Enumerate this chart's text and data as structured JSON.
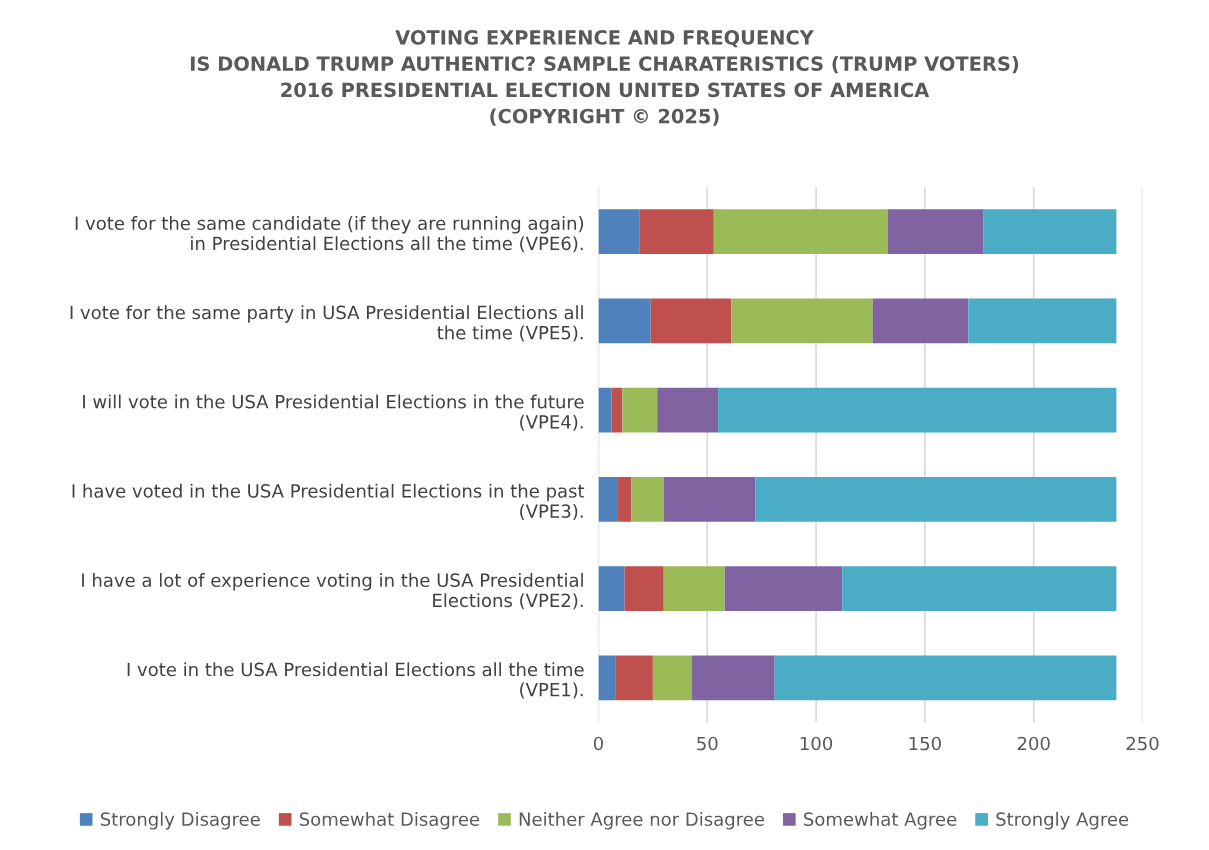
{
  "chart_data": {
    "type": "bar",
    "orientation": "horizontal",
    "stacked": true,
    "title": "VOTING EXPERIENCE AND FREQUENCY\nIS DONALD TRUMP AUTHENTIC? SAMPLE CHARATERISTICS (TRUMP VOTERS)\n2016 PRESIDENTIAL ELECTION UNITED STATES OF AMERICA\n(COPYRIGHT © 2025)",
    "categories": [
      "I vote for the same candidate (if they are running again)\nin Presidential Elections all the time (VPE6).",
      "I vote for the same party in USA Presidential Elections all\nthe time (VPE5).",
      "I will vote in the USA Presidential Elections in the future\n(VPE4).",
      "I have voted in the USA Presidential Elections in the past\n(VPE3).",
      "I have a lot of experience voting in the USA Presidential\nElections (VPE2).",
      "I vote in the USA Presidential Elections all the time\n(VPE1)."
    ],
    "series": [
      {
        "name": "Strongly Disagree",
        "color": "#4f81bd",
        "values": [
          19,
          24,
          6,
          9,
          12,
          8
        ]
      },
      {
        "name": "Somewhat Disagree",
        "color": "#c0504d",
        "values": [
          34,
          37,
          5,
          6,
          18,
          17
        ]
      },
      {
        "name": "Neither Agree nor Disagree",
        "color": "#9bbb59",
        "values": [
          80,
          65,
          16,
          15,
          28,
          18
        ]
      },
      {
        "name": "Somewhat Agree",
        "color": "#8064a2",
        "values": [
          44,
          44,
          28,
          42,
          54,
          38
        ]
      },
      {
        "name": "Strongly Agree",
        "color": "#4bacc6",
        "values": [
          61,
          68,
          183,
          166,
          126,
          157
        ]
      }
    ],
    "xlim": [
      0,
      250
    ],
    "xticks": [
      0,
      50,
      100,
      150,
      200,
      250
    ],
    "grid": "x",
    "legend": "bottom"
  }
}
